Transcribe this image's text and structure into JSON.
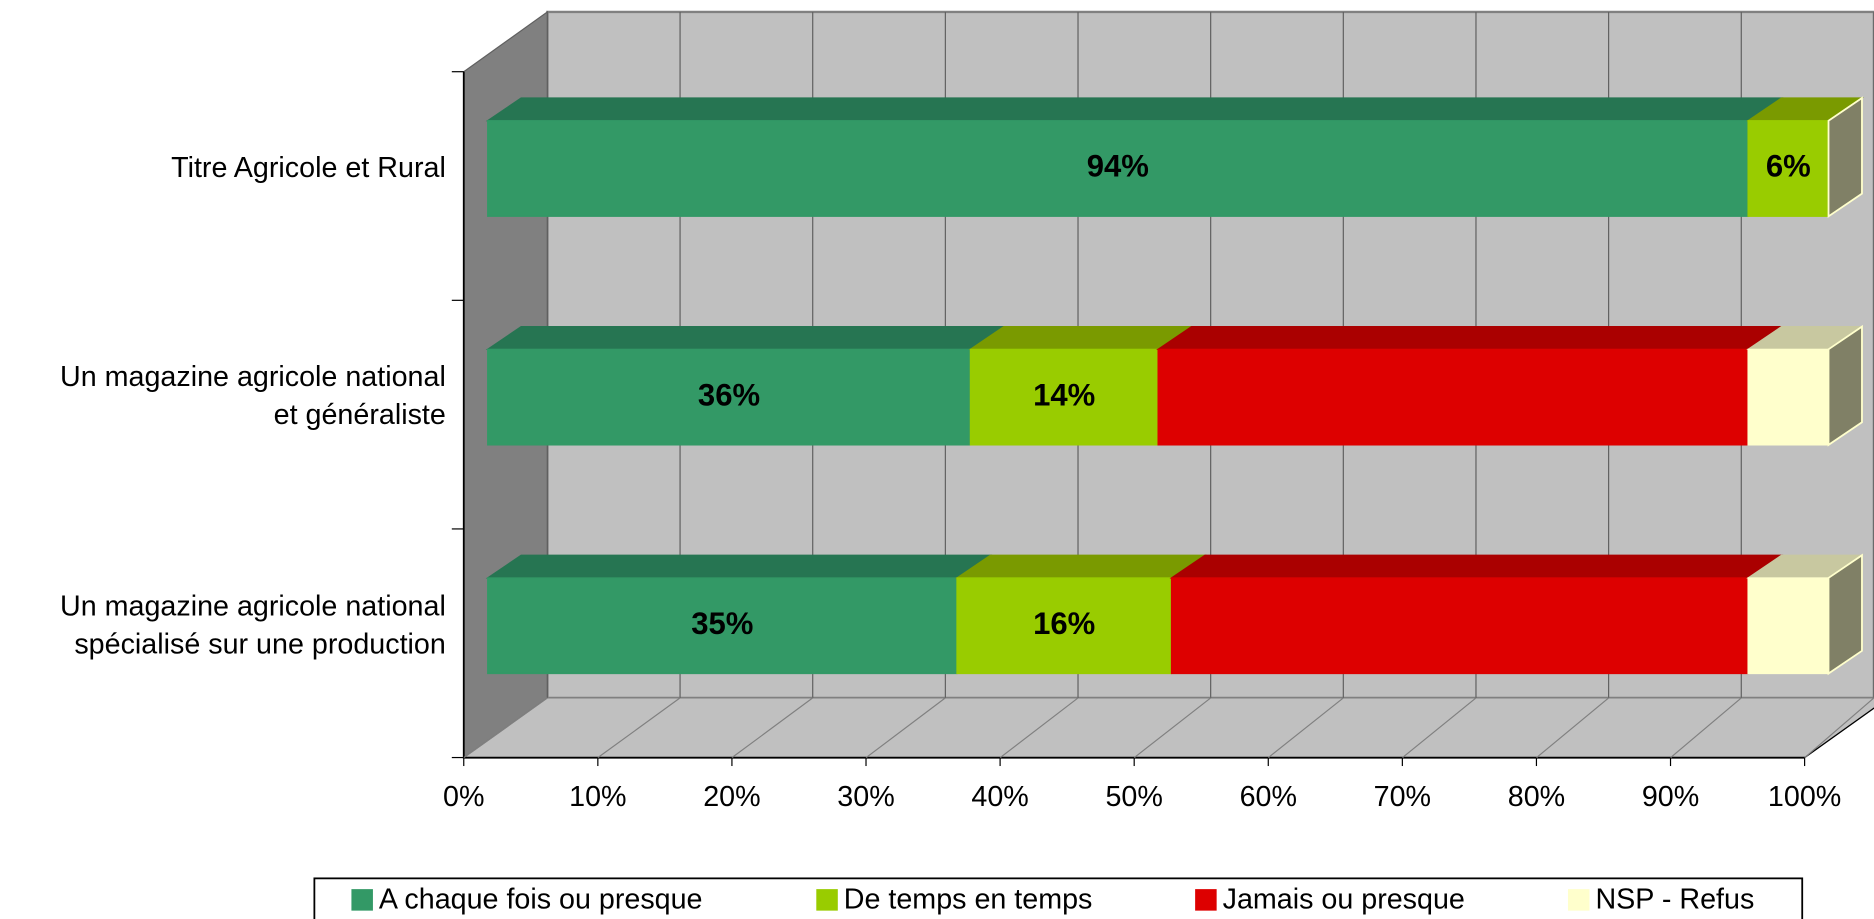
{
  "chart_data": {
    "type": "stacked-bar-3d",
    "orientation": "horizontal",
    "categories": [
      "Titre Agricole et Rural",
      "Un magazine agricole national\net généraliste",
      "Un magazine agricole national\nspécialisé sur une production"
    ],
    "series": [
      {
        "name": "A chaque fois ou presque",
        "color": "#339966",
        "top_color": "#267552",
        "values": [
          94,
          36,
          35
        ],
        "value_labels": [
          "94%",
          "36%",
          "35%"
        ]
      },
      {
        "name": "De temps en temps",
        "color": "#99cc00",
        "top_color": "#7a9a00",
        "values": [
          6,
          14,
          16
        ],
        "value_labels": [
          "6%",
          "14%",
          "16%"
        ]
      },
      {
        "name": "Jamais ou presque",
        "color": "#dd0000",
        "top_color": "#aa0000",
        "values": [
          0,
          44,
          43
        ]
      },
      {
        "name": "NSP - Refus",
        "color": "#ffffcc",
        "top_color": "#c8c8a0",
        "values": [
          0,
          6,
          6
        ]
      }
    ],
    "xlim": [
      0,
      100
    ],
    "xticks": [
      {
        "value": 0,
        "label": "0%"
      },
      {
        "value": 10,
        "label": "10%"
      },
      {
        "value": 20,
        "label": "20%"
      },
      {
        "value": 30,
        "label": "30%"
      },
      {
        "value": 40,
        "label": "40%"
      },
      {
        "value": 50,
        "label": "50%"
      },
      {
        "value": 60,
        "label": "60%"
      },
      {
        "value": 70,
        "label": "70%"
      },
      {
        "value": 80,
        "label": "80%"
      },
      {
        "value": 90,
        "label": "90%"
      },
      {
        "value": 100,
        "label": "100%"
      }
    ],
    "grid": true,
    "legend": "bottom"
  }
}
